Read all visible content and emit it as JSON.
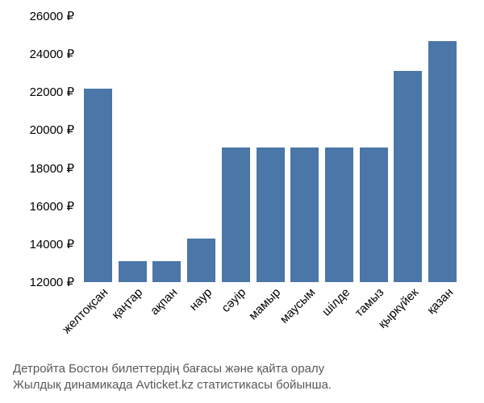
{
  "chart": {
    "type": "bar",
    "currency_suffix": " ₽",
    "y_axis": {
      "min": 12000,
      "max": 26000,
      "tick_step": 2000,
      "ticks": [
        12000,
        14000,
        16000,
        18000,
        20000,
        22000,
        24000,
        26000
      ],
      "label_fontsize": 15,
      "label_color": "#000000"
    },
    "x_axis": {
      "categories": [
        "желтоқсан",
        "қаңтар",
        "ақпан",
        "наур",
        "сәуір",
        "мамыр",
        "маусым",
        "шілде",
        "тамыз",
        "қыркүйек",
        "қазан"
      ],
      "label_fontsize": 15,
      "label_color": "#000000",
      "rotation_deg": -45
    },
    "values": [
      22200,
      13100,
      13100,
      14300,
      19100,
      19100,
      19100,
      19100,
      19100,
      23100,
      24700
    ],
    "bar_color": "#4a76a8",
    "bar_width_ratio": 0.82,
    "background_color": "#ffffff"
  },
  "caption": {
    "line1": "Детройта Бостон билеттердің бағасы және қайта оралу",
    "line2": "Жылдық динамикада Avticket.kz статистикасы бойынша.",
    "color": "#595959",
    "fontsize": 15
  }
}
